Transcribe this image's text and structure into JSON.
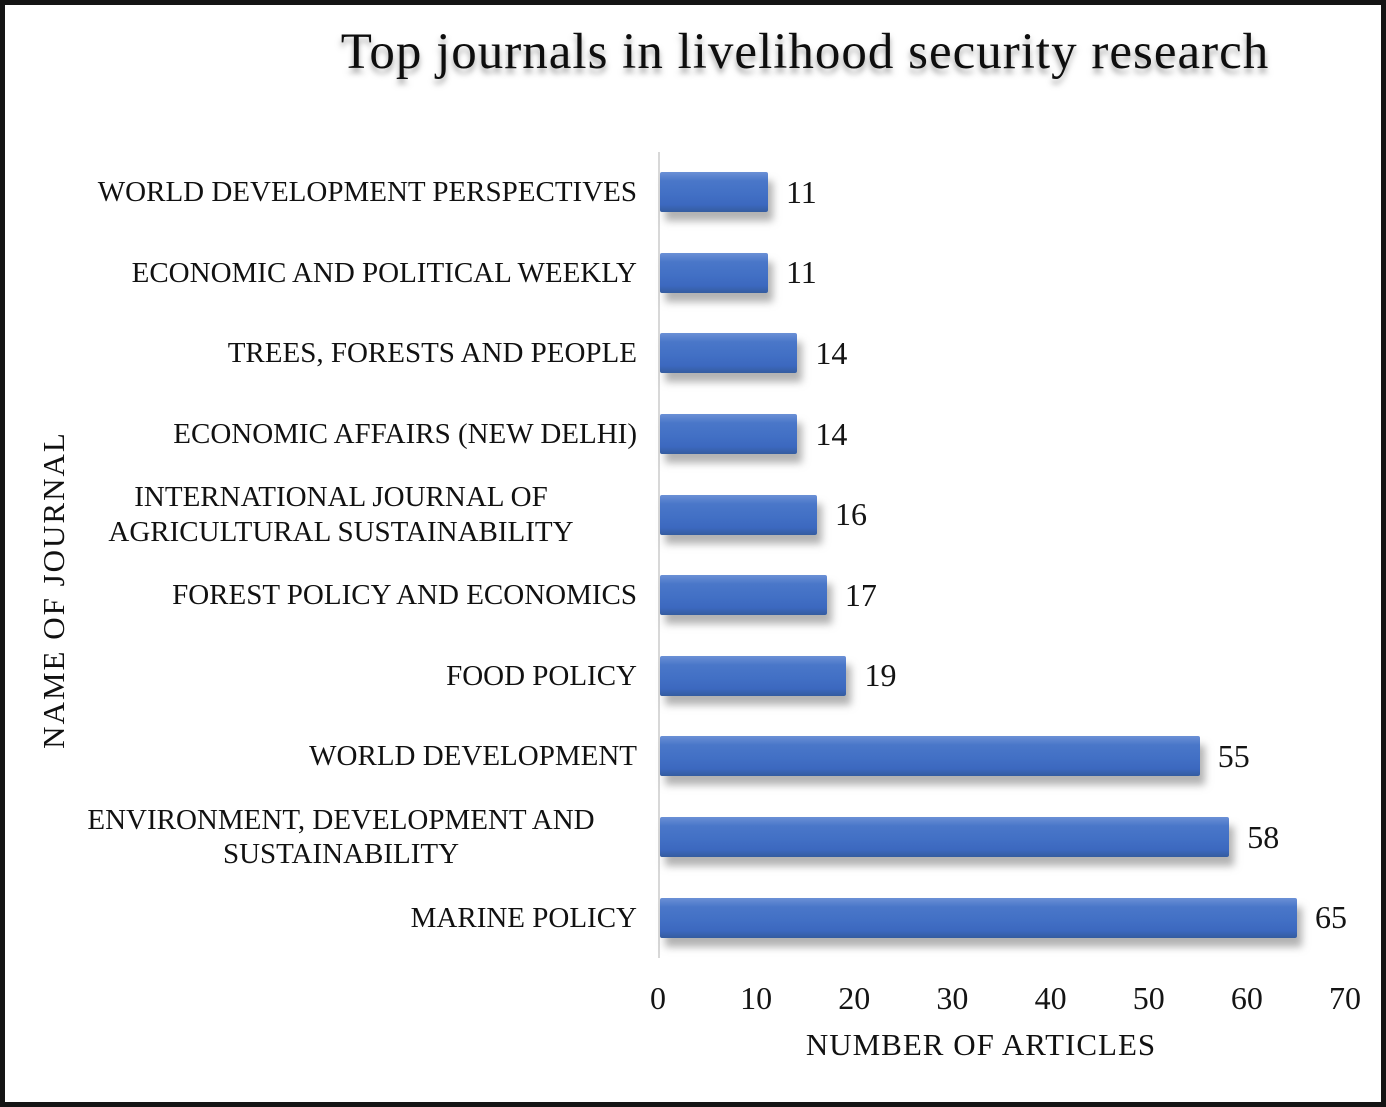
{
  "chart_data": {
    "type": "bar",
    "orientation": "horizontal",
    "title": "Top journals in livelihood security research",
    "categories": [
      "WORLD DEVELOPMENT PERSPECTIVES",
      "ECONOMIC AND POLITICAL WEEKLY",
      "TREES, FORESTS AND PEOPLE",
      "ECONOMIC AFFAIRS (NEW DELHI)",
      "INTERNATIONAL JOURNAL OF AGRICULTURAL SUSTAINABILITY",
      "FOREST POLICY AND ECONOMICS",
      "FOOD POLICY",
      "WORLD DEVELOPMENT",
      "ENVIRONMENT, DEVELOPMENT AND SUSTAINABILITY",
      "MARINE POLICY"
    ],
    "values": [
      11,
      11,
      14,
      14,
      16,
      17,
      19,
      55,
      58,
      65
    ],
    "data_labels_shown": true,
    "xlabel": "NUMBER OF ARTICLES",
    "ylabel": "NAME OF JOURNAL",
    "xlim": [
      0,
      70
    ],
    "xticks": [
      0,
      10,
      20,
      30,
      40,
      50,
      60,
      70
    ],
    "grid": false,
    "legend": false,
    "bar_color": "#4472C4",
    "text_color": "#1a1a1a",
    "axis_line_color": "#d8d8d8",
    "frame_border_color": "#141414"
  }
}
